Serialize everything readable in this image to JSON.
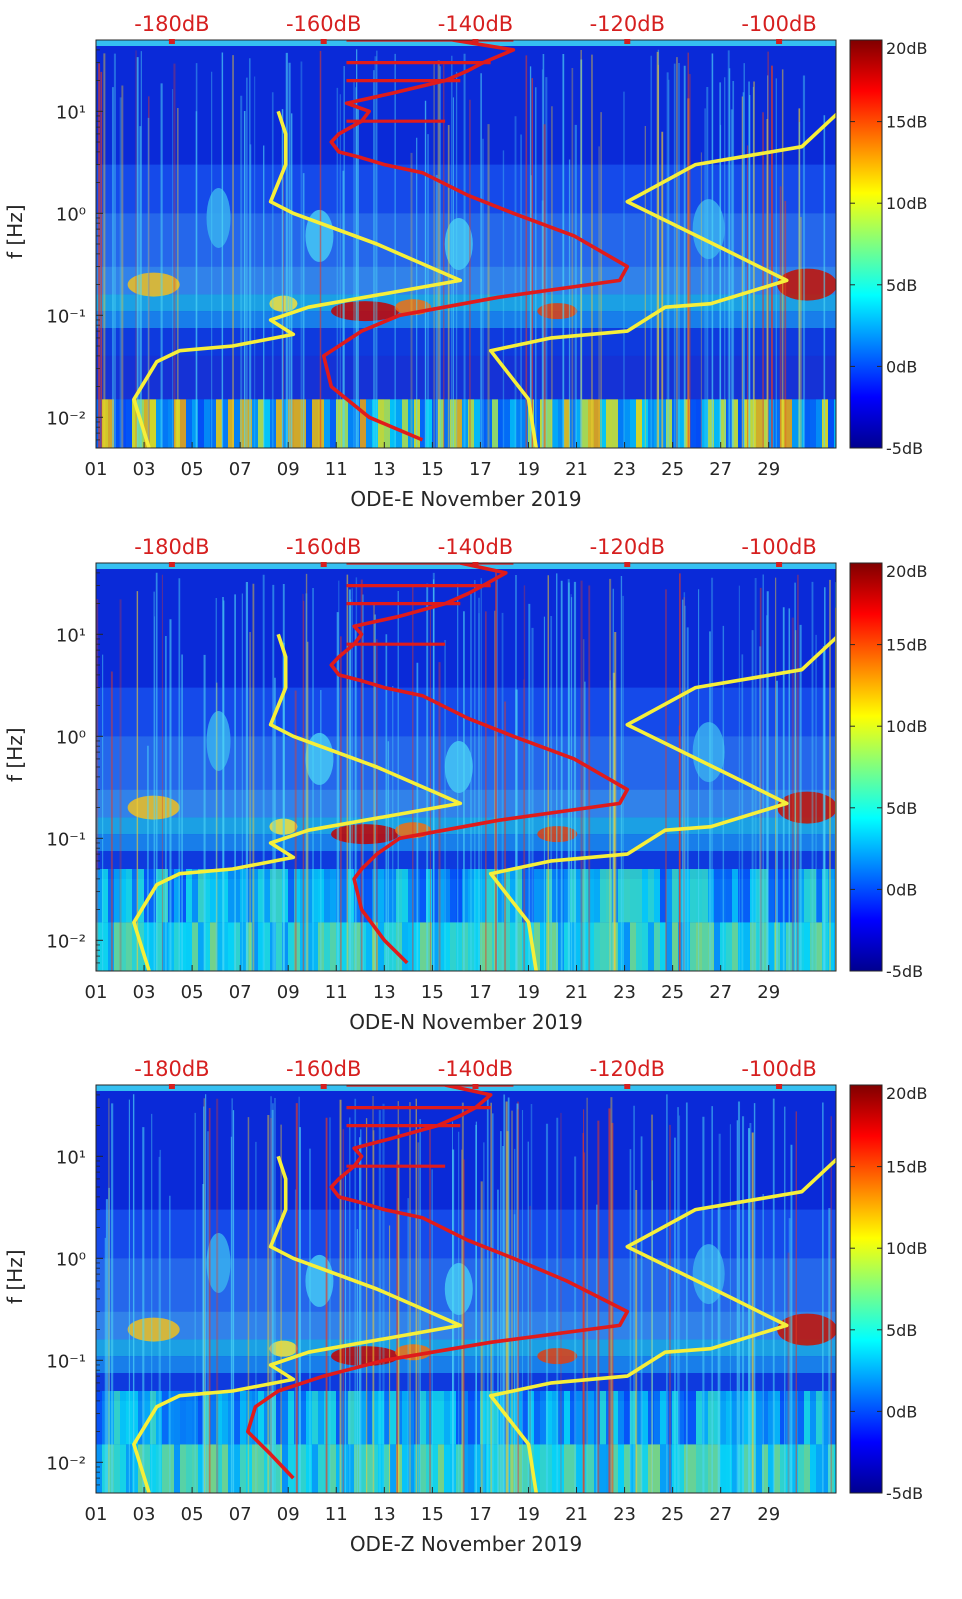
{
  "chart_data": [
    {
      "type": "heatmap",
      "panel": "ODE-E",
      "xlabel": "ODE-E November 2019",
      "ylabel": "f [Hz]",
      "x_ticks": [
        "01",
        "03",
        "05",
        "07",
        "09",
        "11",
        "13",
        "15",
        "17",
        "19",
        "21",
        "23",
        "25",
        "27",
        "29"
      ],
      "xlim_days": [
        1,
        31.8
      ],
      "y_ticks": [
        {
          "label": "10⁻²",
          "value": 0.01
        },
        {
          "label": "10⁻¹",
          "value": 0.1
        },
        {
          "label": "10⁰",
          "value": 1
        },
        {
          "label": "10¹",
          "value": 10
        }
      ],
      "ylim_hz": [
        0.005,
        50
      ],
      "top_axis_ticks": [
        "-180dB",
        "-160dB",
        "-140dB",
        "-120dB",
        "-100dB"
      ],
      "top_axis_values_db": [
        -180,
        -160,
        -140,
        -120,
        -100
      ],
      "colorbar": {
        "ticks": [
          "-5dB",
          "0dB",
          "5dB",
          "10dB",
          "15dB",
          "20dB"
        ],
        "range_db": [
          -5,
          20
        ]
      },
      "series": [
        {
          "name": "red spectrum (top dB axis)",
          "color": "#e01b1b",
          "points": [
            [
              -143,
              50
            ],
            [
              -135,
              40
            ],
            [
              -139,
              30
            ],
            [
              -141,
              25
            ],
            [
              -144,
              20
            ],
            [
              -151,
              15
            ],
            [
              -157,
              12
            ],
            [
              -154,
              10
            ],
            [
              -155,
              8
            ],
            [
              -158,
              6
            ],
            [
              -159,
              5
            ],
            [
              -158,
              4
            ],
            [
              -155,
              3.5
            ],
            [
              -152,
              3
            ],
            [
              -147,
              2.5
            ],
            [
              -141,
              1.5
            ],
            [
              -135,
              1
            ],
            [
              -127,
              0.6
            ],
            [
              -120,
              0.3
            ],
            [
              -121,
              0.22
            ],
            [
              -137,
              0.15
            ],
            [
              -150,
              0.1
            ],
            [
              -155,
              0.07
            ],
            [
              -158,
              0.05
            ],
            [
              -160,
              0.04
            ],
            [
              -159,
              0.02
            ],
            [
              -154,
              0.01
            ],
            [
              -147,
              0.006
            ]
          ]
        },
        {
          "name": "yellow noise model low (top dB axis)",
          "color": "#f6ef3a",
          "points": [
            [
              -166,
              10
            ],
            [
              -165,
              6
            ],
            [
              -165,
              3
            ],
            [
              -167,
              1.3
            ],
            [
              -164,
              1
            ],
            [
              -153,
              0.5
            ],
            [
              -142,
              0.22
            ],
            [
              -162,
              0.12
            ],
            [
              -167,
              0.09
            ],
            [
              -164,
              0.065
            ],
            [
              -172,
              0.05
            ],
            [
              -179,
              0.045
            ],
            [
              -182,
              0.035
            ],
            [
              -185,
              0.015
            ],
            [
              -183,
              0.005
            ]
          ]
        },
        {
          "name": "yellow noise model high (top dB axis)",
          "color": "#f6ef3a",
          "points": [
            [
              -92,
              10
            ],
            [
              -97,
              4.5
            ],
            [
              -111,
              3
            ],
            [
              -120,
              1.3
            ],
            [
              -106,
              0.4
            ],
            [
              -99,
              0.22
            ],
            [
              -109,
              0.13
            ],
            [
              -115,
              0.12
            ],
            [
              -120,
              0.07
            ],
            [
              -130,
              0.06
            ],
            [
              -138,
              0.045
            ],
            [
              -133,
              0.015
            ],
            [
              -132,
              0.005
            ]
          ]
        }
      ]
    },
    {
      "type": "heatmap",
      "panel": "ODE-N",
      "xlabel": "ODE-N November 2019",
      "ylabel": "f [Hz]",
      "x_ticks": [
        "01",
        "03",
        "05",
        "07",
        "09",
        "11",
        "13",
        "15",
        "17",
        "19",
        "21",
        "23",
        "25",
        "27",
        "29"
      ],
      "xlim_days": [
        1,
        31.8
      ],
      "y_ticks": [
        {
          "label": "10⁻²",
          "value": 0.01
        },
        {
          "label": "10⁻¹",
          "value": 0.1
        },
        {
          "label": "10⁰",
          "value": 1
        },
        {
          "label": "10¹",
          "value": 10
        }
      ],
      "ylim_hz": [
        0.005,
        50
      ],
      "top_axis_ticks": [
        "-180dB",
        "-160dB",
        "-140dB",
        "-120dB",
        "-100dB"
      ],
      "top_axis_values_db": [
        -180,
        -160,
        -140,
        -120,
        -100
      ],
      "colorbar": {
        "ticks": [
          "-5dB",
          "0dB",
          "5dB",
          "10dB",
          "15dB",
          "20dB"
        ],
        "range_db": [
          -5,
          20
        ]
      },
      "series": [
        {
          "name": "red spectrum (top dB axis)",
          "color": "#e01b1b",
          "points": [
            [
              -142,
              50
            ],
            [
              -136,
              40
            ],
            [
              -139,
              30
            ],
            [
              -141,
              25
            ],
            [
              -144,
              20
            ],
            [
              -150,
              15
            ],
            [
              -156,
              12
            ],
            [
              -155,
              10
            ],
            [
              -156,
              8
            ],
            [
              -158,
              6
            ],
            [
              -159,
              5
            ],
            [
              -158,
              4
            ],
            [
              -155,
              3.5
            ],
            [
              -152,
              3
            ],
            [
              -147,
              2.5
            ],
            [
              -141,
              1.5
            ],
            [
              -135,
              1
            ],
            [
              -127,
              0.6
            ],
            [
              -120,
              0.3
            ],
            [
              -121,
              0.22
            ],
            [
              -137,
              0.15
            ],
            [
              -150,
              0.1
            ],
            [
              -153,
              0.07
            ],
            [
              -155,
              0.05
            ],
            [
              -156,
              0.04
            ],
            [
              -155,
              0.02
            ],
            [
              -152,
              0.01
            ],
            [
              -149,
              0.006
            ]
          ]
        },
        {
          "name": "yellow noise model low (top dB axis)",
          "color": "#f6ef3a",
          "points": [
            [
              -166,
              10
            ],
            [
              -165,
              6
            ],
            [
              -165,
              3
            ],
            [
              -167,
              1.3
            ],
            [
              -164,
              1
            ],
            [
              -153,
              0.5
            ],
            [
              -142,
              0.22
            ],
            [
              -162,
              0.12
            ],
            [
              -167,
              0.09
            ],
            [
              -164,
              0.065
            ],
            [
              -172,
              0.05
            ],
            [
              -179,
              0.045
            ],
            [
              -182,
              0.035
            ],
            [
              -185,
              0.015
            ],
            [
              -183,
              0.005
            ]
          ]
        },
        {
          "name": "yellow noise model high (top dB axis)",
          "color": "#f6ef3a",
          "points": [
            [
              -92,
              10
            ],
            [
              -97,
              4.5
            ],
            [
              -111,
              3
            ],
            [
              -120,
              1.3
            ],
            [
              -106,
              0.4
            ],
            [
              -99,
              0.22
            ],
            [
              -109,
              0.13
            ],
            [
              -115,
              0.12
            ],
            [
              -120,
              0.07
            ],
            [
              -130,
              0.06
            ],
            [
              -138,
              0.045
            ],
            [
              -133,
              0.015
            ],
            [
              -132,
              0.005
            ]
          ]
        }
      ]
    },
    {
      "type": "heatmap",
      "panel": "ODE-Z",
      "xlabel": "ODE-Z November 2019",
      "ylabel": "f [Hz]",
      "x_ticks": [
        "01",
        "03",
        "05",
        "07",
        "09",
        "11",
        "13",
        "15",
        "17",
        "19",
        "21",
        "23",
        "25",
        "27",
        "29"
      ],
      "xlim_days": [
        1,
        31.8
      ],
      "y_ticks": [
        {
          "label": "10⁻²",
          "value": 0.01
        },
        {
          "label": "10⁻¹",
          "value": 0.1
        },
        {
          "label": "10⁰",
          "value": 1
        },
        {
          "label": "10¹",
          "value": 10
        }
      ],
      "ylim_hz": [
        0.005,
        50
      ],
      "top_axis_ticks": [
        "-180dB",
        "-160dB",
        "-140dB",
        "-120dB",
        "-100dB"
      ],
      "top_axis_values_db": [
        -180,
        -160,
        -140,
        -120,
        -100
      ],
      "colorbar": {
        "ticks": [
          "-5dB",
          "0dB",
          "5dB",
          "10dB",
          "15dB",
          "20dB"
        ],
        "range_db": [
          -5,
          20
        ]
      },
      "series": [
        {
          "name": "red spectrum (top dB axis)",
          "color": "#e01b1b",
          "points": [
            [
              -144,
              50
            ],
            [
              -138,
              40
            ],
            [
              -140,
              30
            ],
            [
              -142,
              25
            ],
            [
              -145,
              20
            ],
            [
              -151,
              15
            ],
            [
              -156,
              12
            ],
            [
              -155,
              10
            ],
            [
              -156,
              8
            ],
            [
              -158,
              6
            ],
            [
              -159,
              5
            ],
            [
              -158,
              4
            ],
            [
              -155,
              3.5
            ],
            [
              -152,
              3
            ],
            [
              -147,
              2.5
            ],
            [
              -141,
              1.5
            ],
            [
              -135,
              1
            ],
            [
              -128,
              0.6
            ],
            [
              -120,
              0.3
            ],
            [
              -121,
              0.22
            ],
            [
              -138,
              0.15
            ],
            [
              -152,
              0.1
            ],
            [
              -160,
              0.07
            ],
            [
              -166,
              0.05
            ],
            [
              -169,
              0.035
            ],
            [
              -170,
              0.02
            ],
            [
              -167,
              0.012
            ],
            [
              -164,
              0.007
            ]
          ]
        },
        {
          "name": "yellow noise model low (top dB axis)",
          "color": "#f6ef3a",
          "points": [
            [
              -166,
              10
            ],
            [
              -165,
              6
            ],
            [
              -165,
              3
            ],
            [
              -167,
              1.3
            ],
            [
              -164,
              1
            ],
            [
              -153,
              0.5
            ],
            [
              -142,
              0.22
            ],
            [
              -162,
              0.12
            ],
            [
              -167,
              0.09
            ],
            [
              -164,
              0.065
            ],
            [
              -172,
              0.05
            ],
            [
              -179,
              0.045
            ],
            [
              -182,
              0.035
            ],
            [
              -185,
              0.015
            ],
            [
              -183,
              0.005
            ]
          ]
        },
        {
          "name": "yellow noise model high (top dB axis)",
          "color": "#f6ef3a",
          "points": [
            [
              -92,
              10
            ],
            [
              -97,
              4.5
            ],
            [
              -111,
              3
            ],
            [
              -120,
              1.3
            ],
            [
              -106,
              0.4
            ],
            [
              -99,
              0.22
            ],
            [
              -109,
              0.13
            ],
            [
              -115,
              0.12
            ],
            [
              -120,
              0.07
            ],
            [
              -130,
              0.06
            ],
            [
              -138,
              0.045
            ],
            [
              -133,
              0.015
            ],
            [
              -132,
              0.005
            ]
          ]
        }
      ]
    }
  ]
}
